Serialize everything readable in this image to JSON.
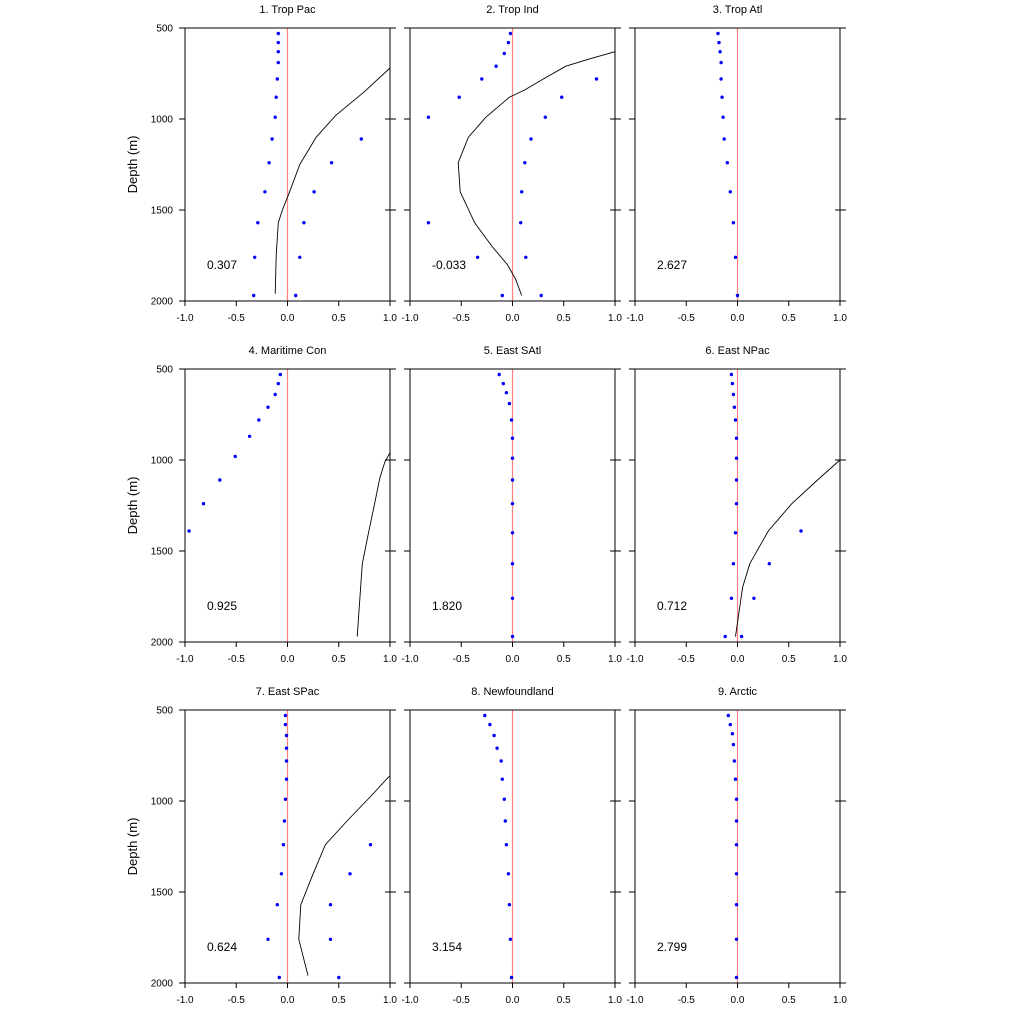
{
  "figure": {
    "ylabel": "Depth (m)",
    "x_ticks": [
      "-1.0",
      "-0.5",
      "0.0",
      "0.5",
      "1.0"
    ],
    "y_ticks": [
      "500",
      "1000",
      "1500",
      "2000"
    ],
    "xlim": [
      -1,
      1
    ],
    "ylim": [
      500,
      2000
    ],
    "y_inverted": true,
    "zero_line_color": "#ff8080",
    "dot_color": "#0000ff",
    "curve_color": "#000000"
  },
  "chart_data": [
    {
      "type": "scatter",
      "title": "1. Trop Pac",
      "annotation": "0.307",
      "dots": [
        [
          -0.09,
          530
        ],
        [
          -0.09,
          580
        ],
        [
          -0.09,
          630
        ],
        [
          -0.09,
          690
        ],
        [
          -0.1,
          780
        ],
        [
          -0.11,
          880
        ],
        [
          -0.12,
          990
        ],
        [
          -0.15,
          1110
        ],
        [
          -0.18,
          1240
        ],
        [
          -0.22,
          1400
        ],
        [
          -0.29,
          1570
        ],
        [
          -0.32,
          1760
        ],
        [
          -0.33,
          1970
        ],
        [
          0.08,
          1970
        ],
        [
          0.12,
          1760
        ],
        [
          0.16,
          1570
        ],
        [
          0.26,
          1400
        ],
        [
          0.43,
          1240
        ],
        [
          0.72,
          1110
        ]
      ],
      "curve": [
        [
          1.0,
          720
        ],
        [
          0.75,
          850
        ],
        [
          0.47,
          980
        ],
        [
          0.28,
          1100
        ],
        [
          0.12,
          1250
        ],
        [
          0.02,
          1400
        ],
        [
          -0.05,
          1500
        ],
        [
          -0.09,
          1570
        ],
        [
          -0.11,
          1750
        ],
        [
          -0.12,
          1960
        ]
      ]
    },
    {
      "type": "scatter",
      "title": "2. Trop Ind",
      "annotation": "-0.033",
      "dots": [
        [
          -0.02,
          530
        ],
        [
          -0.04,
          580
        ],
        [
          -0.08,
          640
        ],
        [
          -0.16,
          710
        ],
        [
          -0.3,
          780
        ],
        [
          -0.52,
          880
        ],
        [
          -0.82,
          990
        ],
        [
          -0.82,
          1570
        ],
        [
          -0.34,
          1760
        ],
        [
          -0.1,
          1970
        ],
        [
          0.28,
          1970
        ],
        [
          0.13,
          1760
        ],
        [
          0.08,
          1570
        ],
        [
          0.09,
          1400
        ],
        [
          0.12,
          1240
        ],
        [
          0.18,
          1110
        ],
        [
          0.32,
          990
        ],
        [
          0.48,
          880
        ],
        [
          0.82,
          780
        ]
      ],
      "curve": [
        [
          1.0,
          630
        ],
        [
          0.75,
          670
        ],
        [
          0.52,
          710
        ],
        [
          0.3,
          780
        ],
        [
          0.12,
          840
        ],
        [
          -0.03,
          880
        ],
        [
          -0.26,
          990
        ],
        [
          -0.43,
          1100
        ],
        [
          -0.53,
          1240
        ],
        [
          -0.51,
          1400
        ],
        [
          -0.37,
          1570
        ],
        [
          -0.2,
          1700
        ],
        [
          -0.05,
          1800
        ],
        [
          0.03,
          1880
        ],
        [
          0.09,
          1970
        ]
      ]
    },
    {
      "type": "scatter",
      "title": "3. Trop Atl",
      "annotation": "2.627",
      "dots": [
        [
          -0.19,
          530
        ],
        [
          -0.18,
          580
        ],
        [
          -0.17,
          630
        ],
        [
          -0.16,
          690
        ],
        [
          -0.16,
          780
        ],
        [
          -0.15,
          880
        ],
        [
          -0.14,
          990
        ],
        [
          -0.13,
          1110
        ],
        [
          -0.1,
          1240
        ],
        [
          -0.07,
          1400
        ],
        [
          -0.04,
          1570
        ],
        [
          -0.02,
          1760
        ],
        [
          0.0,
          1970
        ]
      ],
      "curve": []
    },
    {
      "type": "scatter",
      "title": "4. Maritime Con",
      "annotation": "0.925",
      "dots": [
        [
          -0.07,
          530
        ],
        [
          -0.09,
          580
        ],
        [
          -0.12,
          640
        ],
        [
          -0.19,
          710
        ],
        [
          -0.28,
          780
        ],
        [
          -0.37,
          870
        ],
        [
          -0.51,
          980
        ],
        [
          -0.66,
          1110
        ],
        [
          -0.82,
          1240
        ],
        [
          -0.96,
          1390
        ]
      ],
      "curve": [
        [
          1.0,
          960
        ],
        [
          0.95,
          1010
        ],
        [
          0.9,
          1100
        ],
        [
          0.85,
          1240
        ],
        [
          0.79,
          1400
        ],
        [
          0.73,
          1570
        ],
        [
          0.68,
          1970
        ]
      ]
    },
    {
      "type": "scatter",
      "title": "5. East SAtl",
      "annotation": "1.820",
      "dots": [
        [
          -0.13,
          530
        ],
        [
          -0.09,
          580
        ],
        [
          -0.06,
          630
        ],
        [
          -0.03,
          690
        ],
        [
          -0.01,
          780
        ],
        [
          0.0,
          880
        ],
        [
          0.0,
          990
        ],
        [
          0.0,
          1110
        ],
        [
          0.0,
          1240
        ],
        [
          0.0,
          1400
        ],
        [
          0.0,
          1570
        ],
        [
          0.0,
          1760
        ],
        [
          0.0,
          1970
        ]
      ],
      "curve": []
    },
    {
      "type": "scatter",
      "title": "6. East NPac",
      "annotation": "0.712",
      "dots": [
        [
          -0.06,
          530
        ],
        [
          -0.05,
          580
        ],
        [
          -0.04,
          640
        ],
        [
          -0.03,
          710
        ],
        [
          -0.02,
          780
        ],
        [
          -0.01,
          880
        ],
        [
          -0.01,
          990
        ],
        [
          -0.01,
          1110
        ],
        [
          -0.01,
          1240
        ],
        [
          -0.02,
          1400
        ],
        [
          -0.04,
          1570
        ],
        [
          -0.06,
          1760
        ],
        [
          -0.12,
          1970
        ],
        [
          0.04,
          1970
        ],
        [
          0.16,
          1760
        ],
        [
          0.31,
          1570
        ],
        [
          0.62,
          1390
        ]
      ],
      "curve": [
        [
          1.0,
          1000
        ],
        [
          0.78,
          1110
        ],
        [
          0.53,
          1240
        ],
        [
          0.3,
          1390
        ],
        [
          0.12,
          1570
        ],
        [
          0.05,
          1700
        ],
        [
          -0.02,
          1970
        ]
      ]
    },
    {
      "type": "scatter",
      "title": "7. East SPac",
      "annotation": "0.624",
      "dots": [
        [
          -0.02,
          530
        ],
        [
          -0.02,
          580
        ],
        [
          -0.01,
          640
        ],
        [
          -0.01,
          710
        ],
        [
          -0.01,
          780
        ],
        [
          -0.01,
          880
        ],
        [
          -0.02,
          990
        ],
        [
          -0.03,
          1110
        ],
        [
          -0.04,
          1240
        ],
        [
          -0.06,
          1400
        ],
        [
          -0.1,
          1570
        ],
        [
          -0.19,
          1760
        ],
        [
          -0.08,
          1970
        ],
        [
          0.5,
          1970
        ],
        [
          0.42,
          1760
        ],
        [
          0.42,
          1570
        ],
        [
          0.61,
          1400
        ],
        [
          0.81,
          1240
        ]
      ],
      "curve": [
        [
          1.0,
          860
        ],
        [
          0.82,
          970
        ],
        [
          0.58,
          1110
        ],
        [
          0.37,
          1240
        ],
        [
          0.25,
          1400
        ],
        [
          0.13,
          1570
        ],
        [
          0.11,
          1760
        ],
        [
          0.2,
          1960
        ]
      ]
    },
    {
      "type": "scatter",
      "title": "8. Newfoundland",
      "annotation": "3.154",
      "dots": [
        [
          -0.27,
          530
        ],
        [
          -0.22,
          580
        ],
        [
          -0.18,
          640
        ],
        [
          -0.15,
          710
        ],
        [
          -0.11,
          780
        ],
        [
          -0.1,
          880
        ],
        [
          -0.08,
          990
        ],
        [
          -0.07,
          1110
        ],
        [
          -0.06,
          1240
        ],
        [
          -0.04,
          1400
        ],
        [
          -0.03,
          1570
        ],
        [
          -0.02,
          1760
        ],
        [
          -0.01,
          1970
        ]
      ],
      "curve": []
    },
    {
      "type": "scatter",
      "title": "9. Arctic",
      "annotation": "2.799",
      "dots": [
        [
          -0.09,
          530
        ],
        [
          -0.07,
          580
        ],
        [
          -0.05,
          630
        ],
        [
          -0.04,
          690
        ],
        [
          -0.03,
          780
        ],
        [
          -0.02,
          880
        ],
        [
          -0.01,
          990
        ],
        [
          -0.01,
          1110
        ],
        [
          -0.01,
          1240
        ],
        [
          -0.01,
          1400
        ],
        [
          -0.01,
          1570
        ],
        [
          -0.01,
          1760
        ],
        [
          -0.01,
          1970
        ]
      ],
      "curve": []
    }
  ]
}
